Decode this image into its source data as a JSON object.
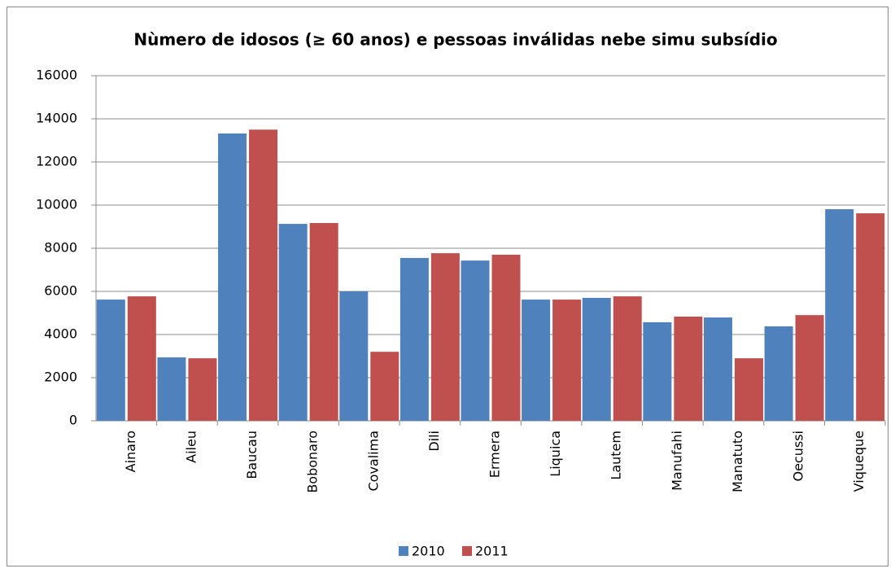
{
  "chart_data": {
    "type": "bar",
    "title": "Nùmero de idosos (≥ 60 anos) e pessoas inválidas nebe simu subsídio",
    "categories": [
      "Ainaro",
      "Aileu",
      "Baucau",
      "Bobonaro",
      "Covalima",
      "Dili",
      "Ermera",
      "Liquica",
      "Lautem",
      "Manufahi",
      "Manatuto",
      "Oecussi",
      "Viqueque"
    ],
    "series": [
      {
        "name": "2010",
        "color": "#4f81bd",
        "values": [
          5620,
          2940,
          13320,
          9130,
          6000,
          7550,
          7430,
          5620,
          5700,
          4570,
          4790,
          4380,
          9810
        ]
      },
      {
        "name": "2011",
        "color": "#c0504d",
        "values": [
          5770,
          2900,
          13500,
          9170,
          3200,
          7770,
          7700,
          5620,
          5770,
          4830,
          2900,
          4900,
          9620
        ]
      }
    ],
    "ylim": [
      0,
      16000
    ],
    "yticks": [
      0,
      2000,
      4000,
      6000,
      8000,
      10000,
      12000,
      14000,
      16000
    ],
    "grid": true,
    "legend": "bottom"
  }
}
